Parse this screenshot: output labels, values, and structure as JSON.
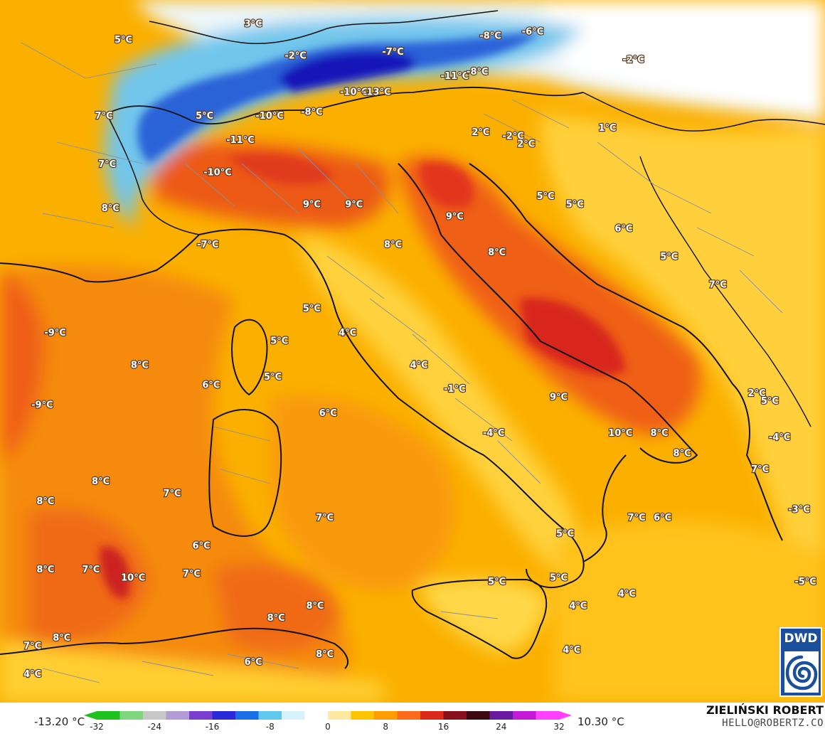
{
  "map": {
    "temperature_labels": [
      {
        "text": "3°C",
        "lon": 7.2,
        "lat": 50.3
      },
      {
        "text": "5°C",
        "lon": 3.2,
        "lat": 49.9
      },
      {
        "text": "-2°C",
        "lon": 8.5,
        "lat": 49.5
      },
      {
        "text": "-7°C",
        "lon": 11.5,
        "lat": 49.6
      },
      {
        "text": "-8°C",
        "lon": 14.5,
        "lat": 50.0
      },
      {
        "text": "-6°C",
        "lon": 15.8,
        "lat": 50.1
      },
      {
        "text": "-11°C",
        "lon": 13.4,
        "lat": 49.0
      },
      {
        "text": "-8°C",
        "lon": 14.1,
        "lat": 49.1
      },
      {
        "text": "-10°C",
        "lon": 10.3,
        "lat": 48.6
      },
      {
        "text": "-13°C",
        "lon": 11.0,
        "lat": 48.6
      },
      {
        "text": "-2°C",
        "lon": 18.9,
        "lat": 49.4
      },
      {
        "text": "7°C",
        "lon": 2.6,
        "lat": 48.0
      },
      {
        "text": "5°C",
        "lon": 5.7,
        "lat": 48.0
      },
      {
        "text": "-10°C",
        "lon": 7.7,
        "lat": 48.0
      },
      {
        "text": "-8°C",
        "lon": 9.0,
        "lat": 48.1
      },
      {
        "text": "-2°C",
        "lon": 15.2,
        "lat": 47.5
      },
      {
        "text": "1°C",
        "lon": 18.1,
        "lat": 47.7
      },
      {
        "text": "-11°C",
        "lon": 6.8,
        "lat": 47.4
      },
      {
        "text": "7°C",
        "lon": 2.7,
        "lat": 46.8
      },
      {
        "text": "-10°C",
        "lon": 6.1,
        "lat": 46.6
      },
      {
        "text": "2°C",
        "lon": 14.2,
        "lat": 47.6
      },
      {
        "text": "2°C",
        "lon": 15.6,
        "lat": 47.3
      },
      {
        "text": "8°C",
        "lon": 2.8,
        "lat": 45.7
      },
      {
        "text": "9°C",
        "lon": 9.0,
        "lat": 45.8
      },
      {
        "text": "9°C",
        "lon": 10.3,
        "lat": 45.8
      },
      {
        "text": "5°C",
        "lon": 16.2,
        "lat": 46.0
      },
      {
        "text": "5°C",
        "lon": 17.1,
        "lat": 45.8
      },
      {
        "text": "9°C",
        "lon": 13.4,
        "lat": 45.5
      },
      {
        "text": "6°C",
        "lon": 18.6,
        "lat": 45.2
      },
      {
        "text": "-7°C",
        "lon": 5.8,
        "lat": 44.8
      },
      {
        "text": "8°C",
        "lon": 11.5,
        "lat": 44.8
      },
      {
        "text": "8°C",
        "lon": 14.7,
        "lat": 44.6
      },
      {
        "text": "5°C",
        "lon": 20.0,
        "lat": 44.5
      },
      {
        "text": "7°C",
        "lon": 21.5,
        "lat": 43.8
      },
      {
        "text": "5°C",
        "lon": 9.0,
        "lat": 43.2
      },
      {
        "text": "4°C",
        "lon": 10.1,
        "lat": 42.6
      },
      {
        "text": "-9°C",
        "lon": 1.1,
        "lat": 42.6
      },
      {
        "text": "5°C",
        "lon": 8.0,
        "lat": 42.4
      },
      {
        "text": "8°C",
        "lon": 3.7,
        "lat": 41.8
      },
      {
        "text": "4°C",
        "lon": 12.3,
        "lat": 41.8
      },
      {
        "text": "5°C",
        "lon": 7.8,
        "lat": 41.5
      },
      {
        "text": "6°C",
        "lon": 5.9,
        "lat": 41.3
      },
      {
        "text": "-1°C",
        "lon": 13.4,
        "lat": 41.2
      },
      {
        "text": "9°C",
        "lon": 16.6,
        "lat": 41.0
      },
      {
        "text": "2°C",
        "lon": 22.7,
        "lat": 41.1
      },
      {
        "text": "5°C",
        "lon": 23.1,
        "lat": 40.9
      },
      {
        "text": "-9°C",
        "lon": 0.7,
        "lat": 40.8
      },
      {
        "text": "6°C",
        "lon": 9.5,
        "lat": 40.6
      },
      {
        "text": "-4°C",
        "lon": 14.6,
        "lat": 40.1
      },
      {
        "text": "10°C",
        "lon": 18.5,
        "lat": 40.1
      },
      {
        "text": "8°C",
        "lon": 19.7,
        "lat": 40.1
      },
      {
        "text": "-4°C",
        "lon": 23.4,
        "lat": 40.0
      },
      {
        "text": "8°C",
        "lon": 20.4,
        "lat": 39.6
      },
      {
        "text": "7°C",
        "lon": 22.8,
        "lat": 39.2
      },
      {
        "text": "8°C",
        "lon": 2.5,
        "lat": 38.9
      },
      {
        "text": "7°C",
        "lon": 4.7,
        "lat": 38.6
      },
      {
        "text": "8°C",
        "lon": 0.8,
        "lat": 38.4
      },
      {
        "text": "-3°C",
        "lon": 24.0,
        "lat": 38.2
      },
      {
        "text": "7°C",
        "lon": 9.4,
        "lat": 38.0
      },
      {
        "text": "7°C",
        "lon": 19.0,
        "lat": 38.0
      },
      {
        "text": "6°C",
        "lon": 19.8,
        "lat": 38.0
      },
      {
        "text": "5°C",
        "lon": 16.8,
        "lat": 37.6
      },
      {
        "text": "6°C",
        "lon": 5.6,
        "lat": 37.3
      },
      {
        "text": "8°C",
        "lon": 0.8,
        "lat": 36.7
      },
      {
        "text": "7°C",
        "lon": 2.2,
        "lat": 36.7
      },
      {
        "text": "7°C",
        "lon": 5.3,
        "lat": 36.6
      },
      {
        "text": "10°C",
        "lon": 3.5,
        "lat": 36.5
      },
      {
        "text": "5°C",
        "lon": 14.7,
        "lat": 36.4
      },
      {
        "text": "5°C",
        "lon": 16.6,
        "lat": 36.5
      },
      {
        "text": "-5°C",
        "lon": 24.2,
        "lat": 36.4
      },
      {
        "text": "4°C",
        "lon": 18.7,
        "lat": 36.1
      },
      {
        "text": "8°C",
        "lon": 9.1,
        "lat": 35.8
      },
      {
        "text": "4°C",
        "lon": 17.2,
        "lat": 35.8
      },
      {
        "text": "8°C",
        "lon": 7.9,
        "lat": 35.5
      },
      {
        "text": "8°C",
        "lon": 1.3,
        "lat": 35.0
      },
      {
        "text": "7°C",
        "lon": 0.4,
        "lat": 34.8
      },
      {
        "text": "4°C",
        "lon": 17.0,
        "lat": 34.7
      },
      {
        "text": "8°C",
        "lon": 9.4,
        "lat": 34.6
      },
      {
        "text": "6°C",
        "lon": 7.2,
        "lat": 34.4
      },
      {
        "text": "4°C",
        "lon": 0.4,
        "lat": 34.1
      }
    ]
  },
  "legend": {
    "min_label": "-13.20 °C",
    "max_label": "10.30 °C",
    "scale_min": -32,
    "scale_max": 32,
    "ticks": [
      "-32",
      "-24",
      "-16",
      "-8",
      "0",
      "8",
      "16",
      "24",
      "32"
    ],
    "colors": [
      "#1ec21e",
      "#7fd67f",
      "#c7c7c7",
      "#b39cd6",
      "#7a3fd0",
      "#2a2ad6",
      "#1a6fe8",
      "#5fc8ef",
      "#d6f3fb",
      "#ffffff",
      "#ffe9a0",
      "#ffc400",
      "#ff9d00",
      "#ff6a1a",
      "#d92a1a",
      "#8a1020",
      "#3a0a10",
      "#6a1aa0",
      "#c21ad6",
      "#ff40ff"
    ]
  },
  "credit": {
    "name": "ZIELIŃSKI ROBERT",
    "email": "HELLO@ROBERTZ.CO"
  },
  "logo": {
    "text": "DWD"
  }
}
